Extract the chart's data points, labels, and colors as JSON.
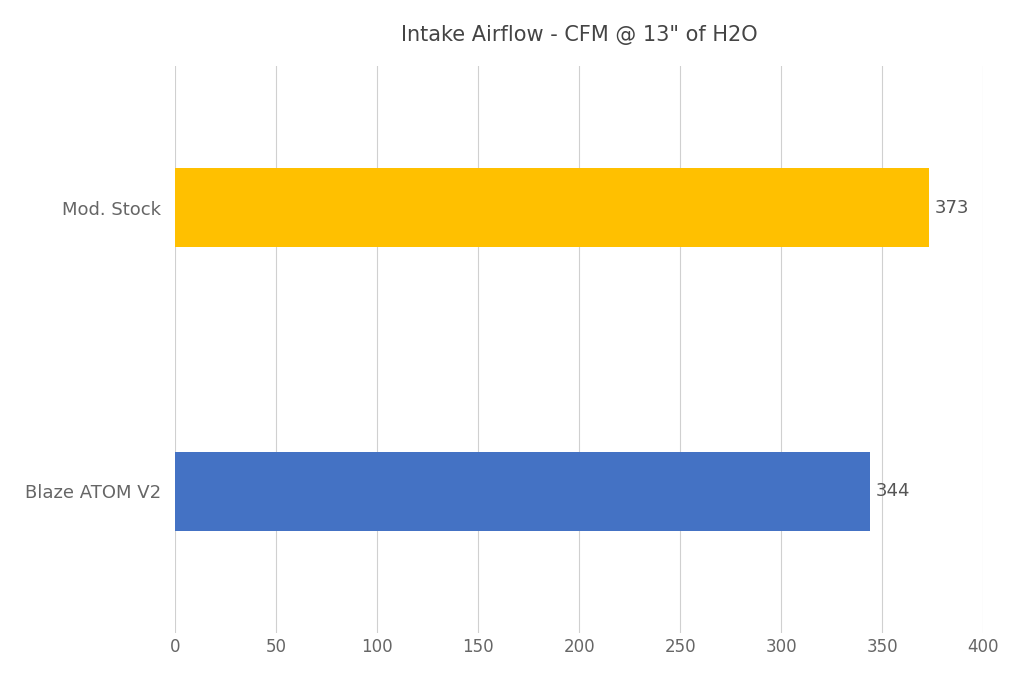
{
  "title": "Intake Airflow - CFM @ 13\" of H2O",
  "categories": [
    "Blaze ATOM V2",
    "Mod. Stock"
  ],
  "values": [
    344,
    373
  ],
  "bar_colors": [
    "#4472C4",
    "#FFC000"
  ],
  "value_labels": [
    "344",
    "373"
  ],
  "xlim": [
    0,
    400
  ],
  "xticks": [
    0,
    50,
    100,
    150,
    200,
    250,
    300,
    350,
    400
  ],
  "background_color": "#ffffff",
  "grid_color": "#d0d0d0",
  "title_fontsize": 15,
  "label_fontsize": 13,
  "tick_fontsize": 12,
  "value_label_fontsize": 13,
  "bar_height": 0.28,
  "label_color": "#666666",
  "value_label_color": "#555555",
  "title_color": "#444444"
}
